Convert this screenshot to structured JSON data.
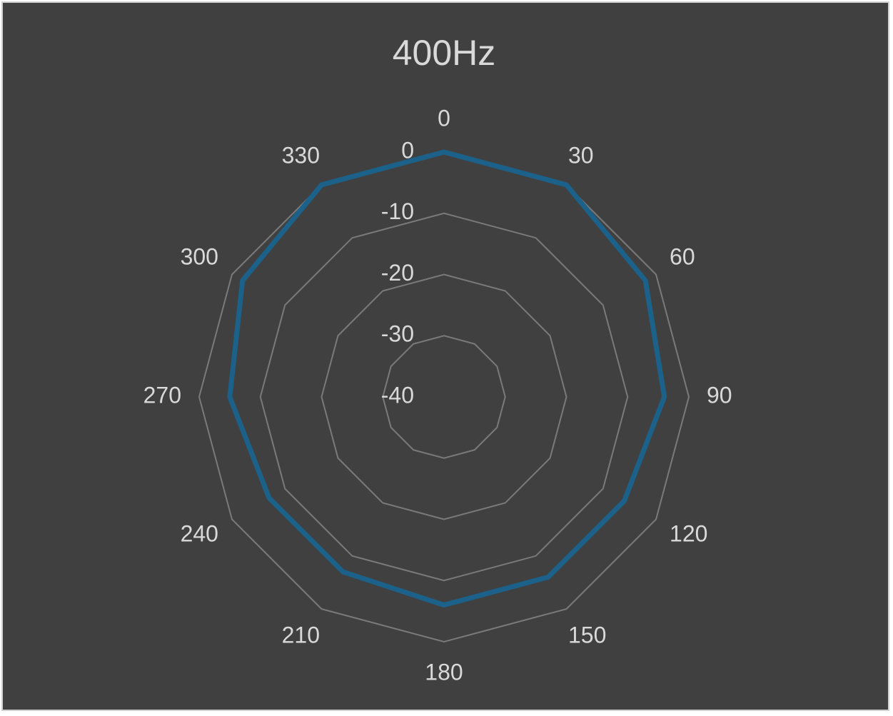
{
  "chart_data": {
    "type": "radar",
    "title": "400Hz",
    "categories": [
      "0",
      "30",
      "60",
      "90",
      "120",
      "150",
      "180",
      "210",
      "240",
      "270",
      "300",
      "330"
    ],
    "series": [
      {
        "color": "#1b6189",
        "values": [
          0,
          0,
          -2,
          -4,
          -6,
          -6,
          -6,
          -7,
          -7,
          -5,
          -2,
          0
        ]
      }
    ],
    "rlim": [
      -40,
      0
    ],
    "rticks": [
      -40,
      -30,
      -20,
      -10,
      0
    ],
    "grid": true
  }
}
